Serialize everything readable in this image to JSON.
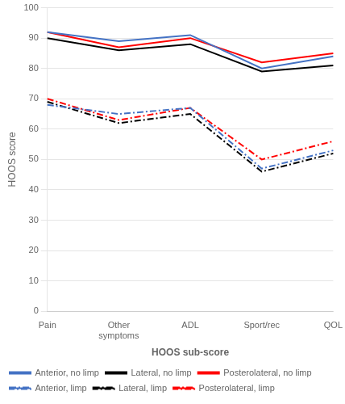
{
  "chart_data": {
    "type": "line",
    "xlabel": "HOOS sub-score",
    "ylabel": "HOOS score",
    "categories": [
      "Pain",
      "Other\nsymptoms",
      "ADL",
      "Sport/rec",
      "QOL"
    ],
    "series": [
      {
        "name": "Anterior, no limp",
        "color": "#4472C4",
        "line_style": "solid",
        "values": [
          92,
          89,
          91,
          80,
          84
        ]
      },
      {
        "name": "Lateral, no limp",
        "color": "#000000",
        "line_style": "solid",
        "values": [
          90,
          86,
          88,
          79,
          81
        ]
      },
      {
        "name": "Posterolateral, no limp",
        "color": "#FF0000",
        "line_style": "solid",
        "values": [
          92,
          87,
          90,
          82,
          85
        ]
      },
      {
        "name": "Anterior, limp",
        "color": "#4472C4",
        "line_style": "dashdot",
        "values": [
          68,
          65,
          67,
          47,
          53
        ]
      },
      {
        "name": "Lateral, limp",
        "color": "#000000",
        "line_style": "dashdot",
        "values": [
          69,
          62,
          65,
          46,
          52
        ]
      },
      {
        "name": "Posterolateral, limp",
        "color": "#FF0000",
        "line_style": "dashdot",
        "values": [
          70,
          63,
          67,
          50,
          56
        ]
      }
    ],
    "ylim": [
      0,
      100
    ],
    "yticks": [
      0,
      10,
      20,
      30,
      40,
      50,
      60,
      70,
      80,
      90,
      100
    ],
    "grid": true,
    "legend": "lower left"
  }
}
